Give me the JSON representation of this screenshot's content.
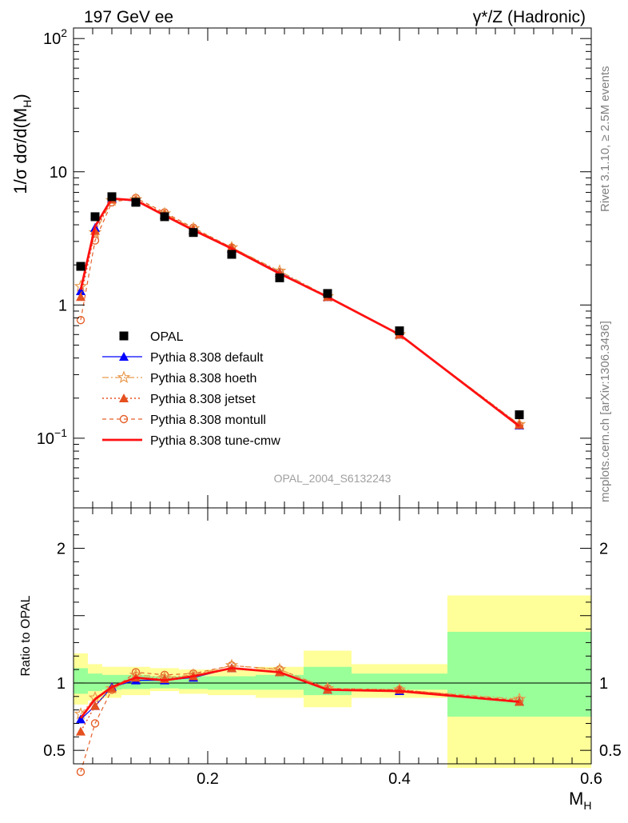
{
  "header": {
    "left": "197 GeV ee",
    "right": "γ*/Z (Hadronic)"
  },
  "side_text": {
    "rivet": "Rivet 3.1.10, ≥ 2.5M events",
    "mcplots": "mcplots.cern.ch [arXiv:1306.3436]"
  },
  "analysis_label": "OPAL_2004_S6132243",
  "colors": {
    "data": "#000000",
    "default": "#0000ff",
    "hoeth": "#e89a4e",
    "jetset": "#e5501f",
    "montull": "#e5602a",
    "tune_cmw": "#ff1111",
    "band_yellow": "#ffff99",
    "band_green": "#99ff99"
  },
  "chart_data": [
    {
      "type": "scatter",
      "title": "",
      "xlabel": "M_H",
      "ylabel": "1/σ dσ/d(M_H)",
      "yscale": "log",
      "xlim": [
        0.06,
        0.6
      ],
      "ylim": [
        0.03,
        120
      ],
      "y_tick_labels": [
        "10^-1",
        "1",
        "10",
        "10^2"
      ],
      "legend": {
        "placement": "lower-left",
        "entries": [
          "OPAL",
          "Pythia 8.308 default",
          "Pythia 8.308 hoeth",
          "Pythia 8.308 jetset",
          "Pythia 8.308 montull",
          "Pythia 8.308 tune-cmw"
        ]
      },
      "x": [
        0.0675,
        0.0825,
        0.1,
        0.125,
        0.155,
        0.185,
        0.225,
        0.275,
        0.325,
        0.4,
        0.525
      ],
      "series": [
        {
          "name": "OPAL",
          "key": "data",
          "style": "square",
          "values": [
            1.95,
            4.6,
            6.5,
            5.9,
            4.6,
            3.5,
            2.4,
            1.6,
            1.22,
            0.64,
            0.15
          ]
        },
        {
          "name": "Pythia 8.308 default",
          "key": "default",
          "style": "triangle",
          "values": [
            1.27,
            3.8,
            6.3,
            6.0,
            4.75,
            3.65,
            2.65,
            1.75,
            1.15,
            0.6,
            0.125
          ]
        },
        {
          "name": "Pythia 8.308 hoeth",
          "key": "hoeth",
          "style": "star",
          "values": [
            1.38,
            3.5,
            6.1,
            6.2,
            4.85,
            3.75,
            2.7,
            1.8,
            1.16,
            0.6,
            0.127
          ]
        },
        {
          "name": "Pythia 8.308 jetset",
          "key": "jetset",
          "style": "triangle",
          "values": [
            1.15,
            3.6,
            6.2,
            6.1,
            4.8,
            3.7,
            2.7,
            1.75,
            1.15,
            0.6,
            0.126
          ]
        },
        {
          "name": "Pythia 8.308 montull",
          "key": "montull",
          "style": "circle",
          "values": [
            0.77,
            3.05,
            5.9,
            6.35,
            4.95,
            3.8,
            2.7,
            1.76,
            1.15,
            0.6,
            0.125
          ]
        },
        {
          "name": "Pythia 8.308 tune-cmw",
          "key": "tune_cmw",
          "style": "line",
          "values": [
            1.3,
            3.9,
            6.3,
            6.1,
            4.7,
            3.65,
            2.65,
            1.72,
            1.15,
            0.6,
            0.123
          ]
        }
      ]
    },
    {
      "type": "line",
      "title": "",
      "xlabel": "M_H",
      "ylabel": "Ratio to OPAL",
      "xlim": [
        0.06,
        0.6
      ],
      "ylim": [
        0.4,
        2.3
      ],
      "x_ticks": [
        0.2,
        0.4,
        0.6
      ],
      "x_tick_labels": [
        "0.2",
        "0.4",
        "0.6"
      ],
      "y_ticks": [
        0.5,
        1,
        2
      ],
      "y_tick_labels": [
        "0.5",
        "1",
        "2"
      ],
      "bins": [
        [
          0.06,
          0.075
        ],
        [
          0.075,
          0.09
        ],
        [
          0.09,
          0.11
        ],
        [
          0.11,
          0.14
        ],
        [
          0.14,
          0.17
        ],
        [
          0.17,
          0.2
        ],
        [
          0.2,
          0.25
        ],
        [
          0.25,
          0.3
        ],
        [
          0.3,
          0.35
        ],
        [
          0.35,
          0.45
        ],
        [
          0.45,
          0.6
        ]
      ],
      "band_yellow": [
        [
          0.84,
          1.22
        ],
        [
          0.87,
          1.14
        ],
        [
          0.89,
          1.12
        ],
        [
          0.91,
          1.12
        ],
        [
          0.94,
          1.11
        ],
        [
          0.92,
          1.1
        ],
        [
          0.91,
          1.1
        ],
        [
          0.89,
          1.12
        ],
        [
          0.82,
          1.24
        ],
        [
          0.89,
          1.14
        ],
        [
          0.37,
          1.65
        ]
      ],
      "band_green": [
        [
          0.92,
          1.11
        ],
        [
          0.94,
          1.07
        ],
        [
          0.95,
          1.06
        ],
        [
          0.955,
          1.06
        ],
        [
          0.96,
          1.05
        ],
        [
          0.955,
          1.05
        ],
        [
          0.95,
          1.05
        ],
        [
          0.95,
          1.06
        ],
        [
          0.91,
          1.12
        ],
        [
          0.95,
          1.07
        ],
        [
          0.75,
          1.38
        ]
      ],
      "x": [
        0.0675,
        0.0825,
        0.1,
        0.125,
        0.155,
        0.185,
        0.225,
        0.275,
        0.325,
        0.4,
        0.525
      ],
      "series": [
        {
          "name": "Pythia 8.308 default",
          "key": "default",
          "style": "triangle",
          "values": [
            0.73,
            0.83,
            0.97,
            1.02,
            1.02,
            1.04,
            1.11,
            1.08,
            0.95,
            0.94,
            0.86
          ]
        },
        {
          "name": "Pythia 8.308 hoeth",
          "key": "hoeth",
          "style": "star",
          "values": [
            0.77,
            0.89,
            0.96,
            1.06,
            1.04,
            1.06,
            1.13,
            1.1,
            0.96,
            0.95,
            0.88
          ]
        },
        {
          "name": "Pythia 8.308 jetset",
          "key": "jetset",
          "style": "triangle",
          "values": [
            0.64,
            0.83,
            0.96,
            1.04,
            1.03,
            1.05,
            1.11,
            1.08,
            0.95,
            0.95,
            0.86
          ]
        },
        {
          "name": "Pythia 8.308 montull",
          "key": "montull",
          "style": "circle",
          "values": [
            0.34,
            0.7,
            0.95,
            1.08,
            1.06,
            1.07,
            1.13,
            1.1,
            0.96,
            0.95,
            0.87
          ]
        },
        {
          "name": "Pythia 8.308 tune-cmw",
          "key": "tune_cmw",
          "style": "line",
          "values": [
            0.74,
            0.88,
            0.97,
            1.04,
            1.02,
            1.05,
            1.11,
            1.08,
            0.95,
            0.94,
            0.86
          ]
        }
      ]
    }
  ]
}
